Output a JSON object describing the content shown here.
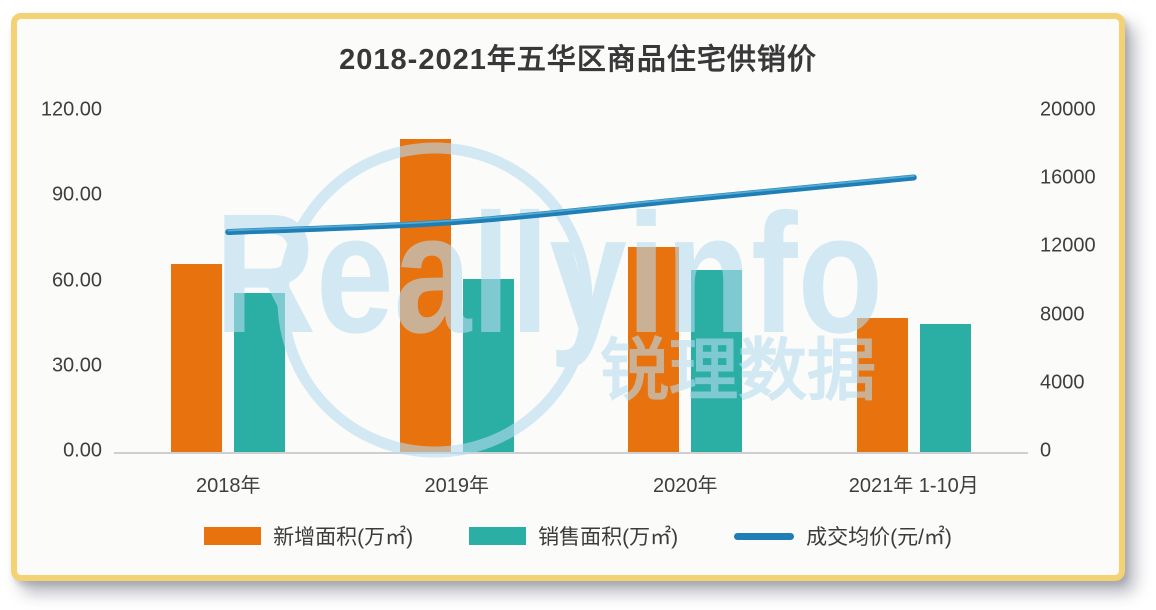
{
  "watermark": {
    "brand_latin": "Reallyinfo",
    "brand_cjk": "锐理数据"
  },
  "colors": {
    "bar_new_supply": "#E8720E",
    "bar_sold": "#2BAEA4",
    "price_line": "#1F7EB5",
    "price_line_highlight": "#66BCDD",
    "card_border": "#F2D272",
    "card_bg": "#FBFBFA",
    "title_text": "#383838",
    "axis_text": "#3E3E3E",
    "axis_line": "#CFCFCF",
    "watermark_blue": "#B7DCF0"
  },
  "chart_data": {
    "type": "bar",
    "title": "2018-2021年五华区商品住宅供销价",
    "categories": [
      "2018年",
      "2019年",
      "2020年",
      "2021年 1-10月"
    ],
    "series": [
      {
        "name": "新增面积(万㎡)",
        "type": "bar",
        "axis": "left",
        "color": "#E8720E",
        "values": [
          66,
          110,
          72,
          47
        ]
      },
      {
        "name": "销售面积(万㎡)",
        "type": "bar",
        "axis": "left",
        "color": "#2BAEA4",
        "values": [
          56,
          61,
          64,
          45
        ]
      },
      {
        "name": "成交均价(元/㎡)",
        "type": "line",
        "axis": "right",
        "color": "#1F7EB5",
        "values": [
          12900,
          13500,
          14800,
          16100
        ]
      }
    ],
    "left_axis": {
      "min": 0,
      "max": 120,
      "step": 30,
      "tick_labels": [
        "0.00",
        "30.00",
        "60.00",
        "90.00",
        "120.00"
      ]
    },
    "right_axis": {
      "min": 0,
      "max": 20000,
      "step": 4000,
      "tick_labels": [
        "0",
        "4000",
        "8000",
        "12000",
        "16000",
        "20000"
      ]
    },
    "legend_position": "bottom",
    "grid": false
  }
}
